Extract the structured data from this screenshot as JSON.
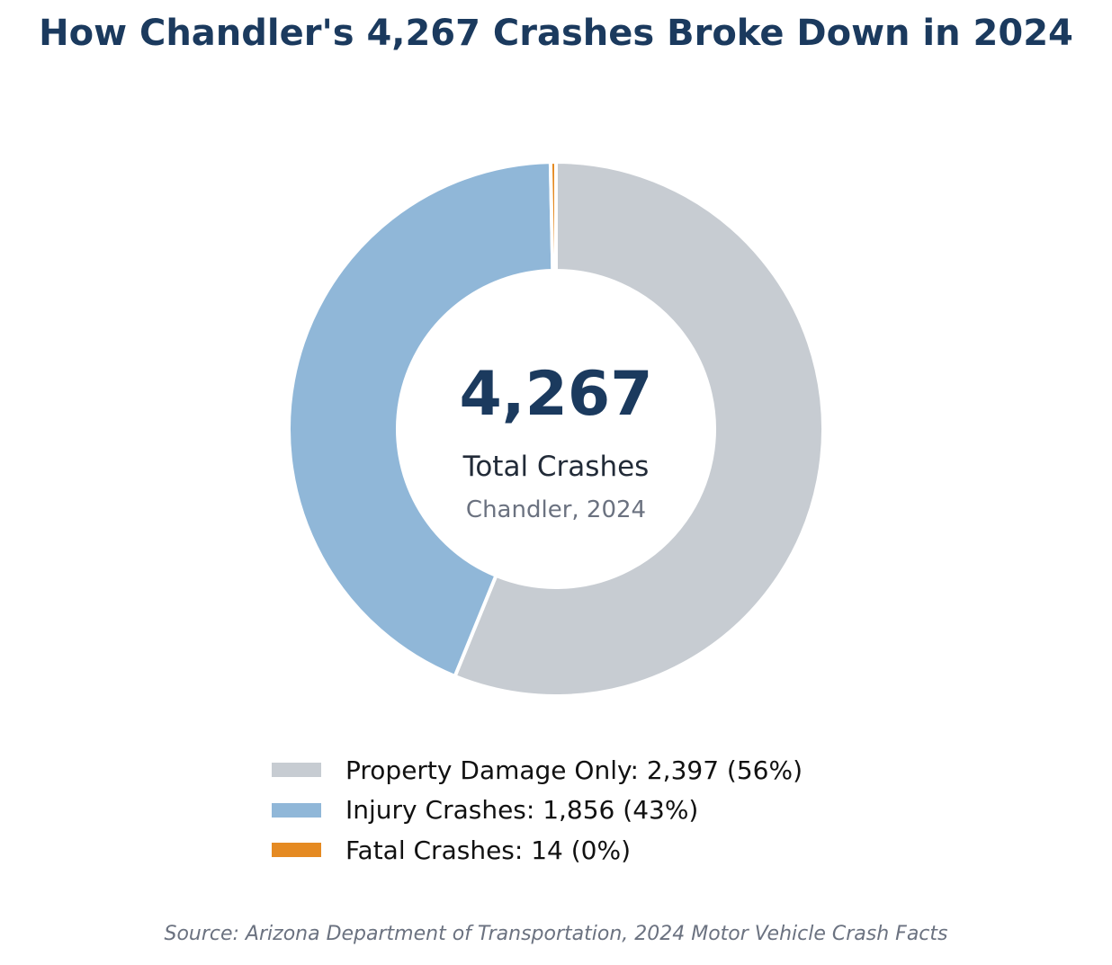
{
  "chart_data": {
    "type": "pie",
    "title": "How Chandler's 4,267 Crashes Broke Down in 2024",
    "center_value": "4,267",
    "center_label": "Total Crashes",
    "center_sublabel": "Chandler, 2024",
    "categories": [
      "Property Damage Only",
      "Injury Crashes",
      "Fatal Crashes"
    ],
    "values": [
      2397,
      1856,
      14
    ],
    "legend_labels": [
      "Property Damage Only: 2,397 (56%)",
      "Injury Crashes: 1,856 (43%)",
      "Fatal Crashes: 14 (0%)"
    ],
    "colors": [
      "#c7ccd2",
      "#90b7d8",
      "#e58a22"
    ],
    "legend_position": "bottom",
    "source": "Source: Arizona Department of Transportation, 2024 Motor Vehicle Crash Facts"
  }
}
